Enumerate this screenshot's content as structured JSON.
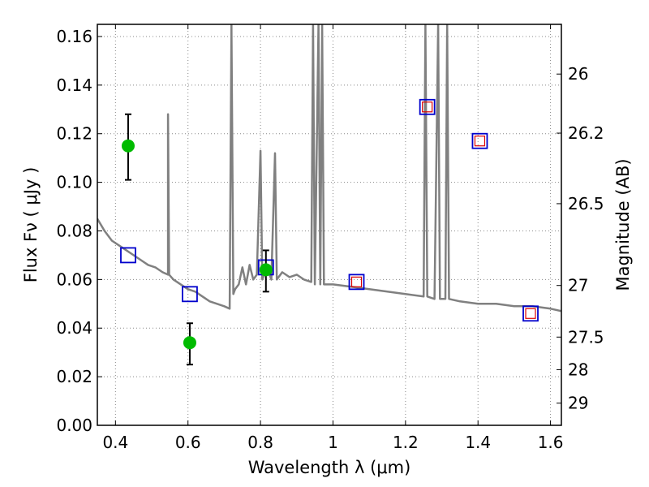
{
  "chart_data": {
    "type": "scatter",
    "xlabel": "Wavelength  λ (μm)",
    "ylabel_left": "Flux  Fν  ( μJy )",
    "ylabel_right": "Magnitude (AB)",
    "xlim": [
      0.35,
      1.63
    ],
    "ylim": [
      0.0,
      0.165
    ],
    "grid": true,
    "x_ticks": [
      0.4,
      0.6,
      0.8,
      1.0,
      1.2,
      1.4,
      1.6
    ],
    "x_tick_labels": [
      "0.4",
      "0.6",
      "0.8",
      "1",
      "1.2",
      "1.4",
      "1.6"
    ],
    "y_ticks": [
      0.0,
      0.02,
      0.04,
      0.06,
      0.08,
      0.1,
      0.12,
      0.14,
      0.16
    ],
    "y_tick_labels": [
      "0.00",
      "0.02",
      "0.04",
      "0.06",
      "0.08",
      "0.10",
      "0.12",
      "0.14",
      "0.16"
    ],
    "right_ticks": [
      26,
      26.2,
      26.5,
      27,
      27.5,
      28,
      29
    ],
    "right_tick_labels": [
      "26",
      "26.2",
      "26.5",
      "27",
      "27.5",
      "28",
      "29"
    ],
    "colors": {
      "spectrum": "#808080",
      "observed": "#00bb00",
      "model_box_blue": "#0000cc",
      "model_box_red": "#dd0000",
      "grid": "#888888"
    },
    "spectrum": [
      [
        0.35,
        0.085
      ],
      [
        0.37,
        0.08
      ],
      [
        0.39,
        0.076
      ],
      [
        0.41,
        0.074
      ],
      [
        0.43,
        0.072
      ],
      [
        0.45,
        0.07
      ],
      [
        0.47,
        0.068
      ],
      [
        0.49,
        0.066
      ],
      [
        0.51,
        0.065
      ],
      [
        0.53,
        0.063
      ],
      [
        0.545,
        0.062
      ],
      [
        0.545,
        0.128
      ],
      [
        0.548,
        0.062
      ],
      [
        0.56,
        0.06
      ],
      [
        0.58,
        0.058
      ],
      [
        0.6,
        0.056
      ],
      [
        0.62,
        0.055
      ],
      [
        0.64,
        0.053
      ],
      [
        0.66,
        0.051
      ],
      [
        0.68,
        0.05
      ],
      [
        0.7,
        0.049
      ],
      [
        0.715,
        0.048
      ],
      [
        0.72,
        0.165
      ],
      [
        0.725,
        0.054
      ],
      [
        0.73,
        0.056
      ],
      [
        0.74,
        0.058
      ],
      [
        0.75,
        0.065
      ],
      [
        0.76,
        0.058
      ],
      [
        0.77,
        0.066
      ],
      [
        0.78,
        0.06
      ],
      [
        0.79,
        0.062
      ],
      [
        0.8,
        0.113
      ],
      [
        0.805,
        0.06
      ],
      [
        0.81,
        0.062
      ],
      [
        0.82,
        0.064
      ],
      [
        0.83,
        0.06
      ],
      [
        0.84,
        0.112
      ],
      [
        0.845,
        0.06
      ],
      [
        0.86,
        0.063
      ],
      [
        0.88,
        0.061
      ],
      [
        0.9,
        0.062
      ],
      [
        0.92,
        0.06
      ],
      [
        0.94,
        0.059
      ],
      [
        0.945,
        0.165
      ],
      [
        0.95,
        0.058
      ],
      [
        0.96,
        0.165
      ],
      [
        0.965,
        0.058
      ],
      [
        0.97,
        0.165
      ],
      [
        0.975,
        0.058
      ],
      [
        1.0,
        0.058
      ],
      [
        1.05,
        0.057
      ],
      [
        1.1,
        0.056
      ],
      [
        1.15,
        0.055
      ],
      [
        1.2,
        0.054
      ],
      [
        1.25,
        0.053
      ],
      [
        1.255,
        0.165
      ],
      [
        1.26,
        0.053
      ],
      [
        1.28,
        0.052
      ],
      [
        1.29,
        0.165
      ],
      [
        1.295,
        0.052
      ],
      [
        1.3,
        0.052
      ],
      [
        1.31,
        0.052
      ],
      [
        1.315,
        0.165
      ],
      [
        1.32,
        0.052
      ],
      [
        1.35,
        0.051
      ],
      [
        1.4,
        0.05
      ],
      [
        1.45,
        0.05
      ],
      [
        1.5,
        0.049
      ],
      [
        1.55,
        0.049
      ],
      [
        1.6,
        0.048
      ],
      [
        1.63,
        0.047
      ]
    ],
    "model_points": [
      {
        "x": 0.435,
        "y": 0.07,
        "inner": false
      },
      {
        "x": 0.605,
        "y": 0.054,
        "inner": false
      },
      {
        "x": 0.815,
        "y": 0.065,
        "inner": false
      },
      {
        "x": 1.065,
        "y": 0.059,
        "inner": true
      },
      {
        "x": 1.26,
        "y": 0.131,
        "inner": true
      },
      {
        "x": 1.405,
        "y": 0.117,
        "inner": true
      },
      {
        "x": 1.545,
        "y": 0.046,
        "inner": true
      }
    ],
    "observed_points": [
      {
        "x": 0.435,
        "y": 0.115,
        "err_lo": 0.101,
        "err_hi": 0.128
      },
      {
        "x": 0.605,
        "y": 0.034,
        "err_lo": 0.025,
        "err_hi": 0.042
      },
      {
        "x": 0.815,
        "y": 0.064,
        "err_lo": 0.055,
        "err_hi": 0.072
      }
    ]
  }
}
